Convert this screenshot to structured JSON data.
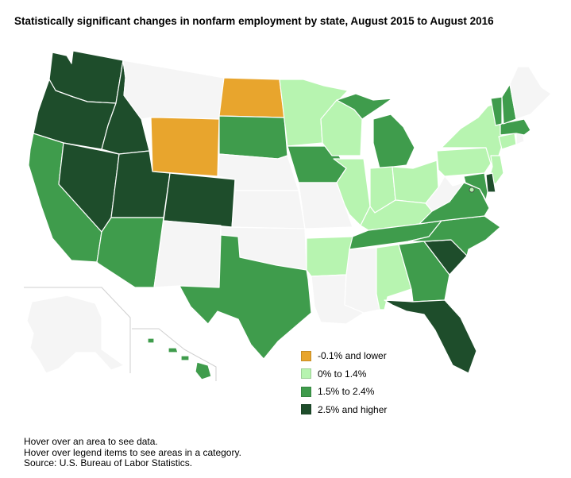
{
  "title": "Statistically significant changes in nonfarm employment by state, August 2015 to August 2016",
  "legend": [
    {
      "label": "-0.1% and lower",
      "color": "#E8A52D"
    },
    {
      "label": "0% to 1.4%",
      "color": "#B7F4B0"
    },
    {
      "label": "1.5% to 2.4%",
      "color": "#3F9C4C"
    },
    {
      "label": "2.5% and higher",
      "color": "#1E4D2B"
    }
  ],
  "no_change_color": "#F5F5F5",
  "footer": {
    "line1": "Hover over an area to see data.",
    "line2": "Hover over legend items to see areas in a category.",
    "source": "Source: U.S. Bureau of Labor Statistics."
  },
  "states": {
    "WA": {
      "name": "Washington",
      "category": 3
    },
    "OR": {
      "name": "Oregon",
      "category": 3
    },
    "CA": {
      "name": "California",
      "category": 2
    },
    "NV": {
      "name": "Nevada",
      "category": 3
    },
    "ID": {
      "name": "Idaho",
      "category": 3
    },
    "MT": {
      "name": "Montana",
      "category": null
    },
    "WY": {
      "name": "Wyoming",
      "category": 0
    },
    "UT": {
      "name": "Utah",
      "category": 3
    },
    "AZ": {
      "name": "Arizona",
      "category": 2
    },
    "CO": {
      "name": "Colorado",
      "category": 3
    },
    "NM": {
      "name": "New Mexico",
      "category": null
    },
    "ND": {
      "name": "North Dakota",
      "category": 0
    },
    "SD": {
      "name": "South Dakota",
      "category": 2
    },
    "NE": {
      "name": "Nebraska",
      "category": null
    },
    "KS": {
      "name": "Kansas",
      "category": null
    },
    "OK": {
      "name": "Oklahoma",
      "category": null
    },
    "TX": {
      "name": "Texas",
      "category": 2
    },
    "MN": {
      "name": "Minnesota",
      "category": 1
    },
    "IA": {
      "name": "Iowa",
      "category": 2
    },
    "MO": {
      "name": "Missouri",
      "category": null
    },
    "AR": {
      "name": "Arkansas",
      "category": 1
    },
    "LA": {
      "name": "Louisiana",
      "category": null
    },
    "WI": {
      "name": "Wisconsin",
      "category": 1
    },
    "IL": {
      "name": "Illinois",
      "category": 1
    },
    "MI": {
      "name": "Michigan",
      "category": 2
    },
    "IN": {
      "name": "Indiana",
      "category": 1
    },
    "OH": {
      "name": "Ohio",
      "category": 1
    },
    "KY": {
      "name": "Kentucky",
      "category": 1
    },
    "TN": {
      "name": "Tennessee",
      "category": 2
    },
    "MS": {
      "name": "Mississippi",
      "category": null
    },
    "AL": {
      "name": "Alabama",
      "category": 1
    },
    "GA": {
      "name": "Georgia",
      "category": 2
    },
    "FL": {
      "name": "Florida",
      "category": 3
    },
    "SC": {
      "name": "South Carolina",
      "category": 3
    },
    "NC": {
      "name": "North Carolina",
      "category": 2
    },
    "VA": {
      "name": "Virginia",
      "category": 2
    },
    "WV": {
      "name": "West Virginia",
      "category": null
    },
    "PA": {
      "name": "Pennsylvania",
      "category": 1
    },
    "NY": {
      "name": "New York",
      "category": 1
    },
    "NJ": {
      "name": "New Jersey",
      "category": 1
    },
    "DE": {
      "name": "Delaware",
      "category": 3
    },
    "MD": {
      "name": "Maryland",
      "category": 2
    },
    "DC": {
      "name": "District of Columbia",
      "category": 1
    },
    "CT": {
      "name": "Connecticut",
      "category": 1
    },
    "RI": {
      "name": "Rhode Island",
      "category": null
    },
    "MA": {
      "name": "Massachusetts",
      "category": 2
    },
    "VT": {
      "name": "Vermont",
      "category": 2
    },
    "NH": {
      "name": "New Hampshire",
      "category": 2
    },
    "ME": {
      "name": "Maine",
      "category": null
    },
    "AK": {
      "name": "Alaska",
      "category": null
    },
    "HI": {
      "name": "Hawaii",
      "category": 2
    }
  }
}
